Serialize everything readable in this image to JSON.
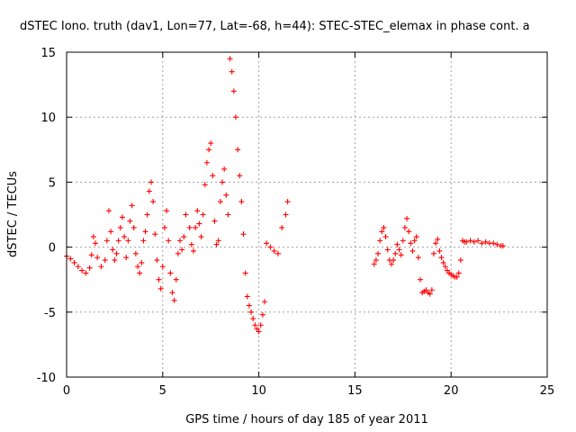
{
  "chart_data": {
    "type": "scatter",
    "title": "dSTEC Iono. truth (dav1, Lon=77, Lat=-68, h=44): STEC-STEC_elemax in phase cont. a",
    "xlabel": "GPS time / hours of day 185 of year 2011",
    "ylabel": "dSTEC  / TECUs",
    "xlim": [
      0,
      25
    ],
    "ylim": [
      -10,
      15
    ],
    "x_ticks": [
      0,
      5,
      10,
      15,
      20,
      25
    ],
    "y_ticks": [
      -10,
      -5,
      0,
      5,
      10,
      15
    ],
    "grid": true,
    "marker": "+",
    "marker_color": "#ff0000",
    "series": [
      {
        "points": [
          [
            0.0,
            -0.7
          ],
          [
            0.2,
            -0.9
          ],
          [
            0.4,
            -1.2
          ],
          [
            0.6,
            -1.5
          ],
          [
            0.8,
            -1.8
          ],
          [
            1.0,
            -2.0
          ],
          [
            1.2,
            -1.6
          ],
          [
            1.3,
            -0.6
          ],
          [
            1.4,
            0.8
          ],
          [
            1.5,
            0.3
          ],
          [
            1.6,
            -0.8
          ],
          [
            1.8,
            -1.5
          ],
          [
            2.0,
            -1.0
          ],
          [
            2.1,
            0.5
          ],
          [
            2.2,
            2.8
          ],
          [
            2.3,
            1.2
          ],
          [
            2.4,
            -0.2
          ],
          [
            2.5,
            -1.0
          ],
          [
            2.6,
            -0.5
          ],
          [
            2.7,
            0.5
          ],
          [
            2.8,
            1.5
          ],
          [
            2.9,
            2.3
          ],
          [
            3.0,
            0.8
          ],
          [
            3.1,
            -0.8
          ],
          [
            3.2,
            0.5
          ],
          [
            3.3,
            2.0
          ],
          [
            3.4,
            3.2
          ],
          [
            3.5,
            1.5
          ],
          [
            3.6,
            -0.5
          ],
          [
            3.7,
            -1.5
          ],
          [
            3.8,
            -2.0
          ],
          [
            3.9,
            -1.2
          ],
          [
            4.0,
            0.5
          ],
          [
            4.1,
            1.2
          ],
          [
            4.2,
            2.5
          ],
          [
            4.3,
            4.3
          ],
          [
            4.4,
            5.0
          ],
          [
            4.5,
            3.5
          ],
          [
            4.6,
            1.0
          ],
          [
            4.7,
            -1.0
          ],
          [
            4.8,
            -2.5
          ],
          [
            4.9,
            -3.2
          ],
          [
            5.0,
            -1.5
          ],
          [
            5.1,
            1.5
          ],
          [
            5.2,
            2.8
          ],
          [
            5.3,
            0.5
          ],
          [
            5.4,
            -2.0
          ],
          [
            5.5,
            -3.5
          ],
          [
            5.6,
            -4.1
          ],
          [
            5.7,
            -2.5
          ],
          [
            5.8,
            -0.5
          ],
          [
            5.9,
            0.5
          ],
          [
            6.0,
            -0.2
          ],
          [
            6.1,
            0.8
          ],
          [
            6.2,
            2.5
          ],
          [
            6.4,
            1.5
          ],
          [
            6.5,
            0.2
          ],
          [
            6.6,
            -0.3
          ],
          [
            6.7,
            1.5
          ],
          [
            6.8,
            2.8
          ],
          [
            6.9,
            1.8
          ],
          [
            7.0,
            0.8
          ],
          [
            7.1,
            2.5
          ],
          [
            7.2,
            4.8
          ],
          [
            7.3,
            6.5
          ],
          [
            7.4,
            7.5
          ],
          [
            7.5,
            8.0
          ],
          [
            7.6,
            5.5
          ],
          [
            7.7,
            2.0
          ],
          [
            7.8,
            0.2
          ],
          [
            7.9,
            0.5
          ],
          [
            8.0,
            3.5
          ],
          [
            8.1,
            5.0
          ],
          [
            8.2,
            6.0
          ],
          [
            8.3,
            4.0
          ],
          [
            8.4,
            2.5
          ],
          [
            8.5,
            14.5
          ],
          [
            8.6,
            13.5
          ],
          [
            8.7,
            12.0
          ],
          [
            8.8,
            10.0
          ],
          [
            8.9,
            7.5
          ],
          [
            9.0,
            5.5
          ],
          [
            9.1,
            3.5
          ],
          [
            9.2,
            1.0
          ],
          [
            9.3,
            -2.0
          ],
          [
            9.4,
            -3.8
          ],
          [
            9.5,
            -4.5
          ],
          [
            9.6,
            -5.0
          ],
          [
            9.7,
            -5.5
          ],
          [
            9.8,
            -6.0
          ],
          [
            9.9,
            -6.3
          ],
          [
            10.0,
            -6.5
          ],
          [
            10.1,
            -6.0
          ],
          [
            10.2,
            -5.2
          ],
          [
            10.3,
            -4.2
          ],
          [
            10.4,
            0.3
          ],
          [
            10.6,
            0.0
          ],
          [
            10.8,
            -0.3
          ],
          [
            11.0,
            -0.5
          ],
          [
            11.2,
            1.5
          ],
          [
            11.4,
            2.5
          ],
          [
            11.5,
            3.5
          ],
          [
            16.0,
            -1.3
          ],
          [
            16.1,
            -1.0
          ],
          [
            16.2,
            -0.5
          ],
          [
            16.3,
            0.5
          ],
          [
            16.4,
            1.2
          ],
          [
            16.5,
            1.5
          ],
          [
            16.6,
            0.8
          ],
          [
            16.7,
            -0.2
          ],
          [
            16.8,
            -1.0
          ],
          [
            16.9,
            -1.3
          ],
          [
            17.0,
            -1.0
          ],
          [
            17.1,
            -0.5
          ],
          [
            17.2,
            0.2
          ],
          [
            17.3,
            -0.2
          ],
          [
            17.4,
            -0.6
          ],
          [
            17.5,
            0.5
          ],
          [
            17.6,
            1.5
          ],
          [
            17.7,
            2.2
          ],
          [
            17.8,
            1.2
          ],
          [
            17.9,
            0.3
          ],
          [
            18.0,
            -0.3
          ],
          [
            18.1,
            0.5
          ],
          [
            18.2,
            0.8
          ],
          [
            18.3,
            -0.8
          ],
          [
            18.4,
            -2.5
          ],
          [
            18.5,
            -3.5
          ],
          [
            18.6,
            -3.4
          ],
          [
            18.7,
            -3.3
          ],
          [
            18.8,
            -3.5
          ],
          [
            18.9,
            -3.6
          ],
          [
            19.0,
            -3.3
          ],
          [
            19.1,
            -0.5
          ],
          [
            19.2,
            0.3
          ],
          [
            19.3,
            0.6
          ],
          [
            19.4,
            -0.3
          ],
          [
            19.5,
            -0.8
          ],
          [
            19.6,
            -1.2
          ],
          [
            19.7,
            -1.5
          ],
          [
            19.8,
            -1.8
          ],
          [
            19.9,
            -2.0
          ],
          [
            20.0,
            -2.1
          ],
          [
            20.1,
            -2.2
          ],
          [
            20.2,
            -2.3
          ],
          [
            20.3,
            -2.3
          ],
          [
            20.4,
            -2.0
          ],
          [
            20.5,
            -1.0
          ],
          [
            20.6,
            0.5
          ],
          [
            20.7,
            0.4
          ],
          [
            20.8,
            0.4
          ],
          [
            21.0,
            0.5
          ],
          [
            21.2,
            0.4
          ],
          [
            21.4,
            0.5
          ],
          [
            21.6,
            0.3
          ],
          [
            21.8,
            0.4
          ],
          [
            22.0,
            0.3
          ],
          [
            22.2,
            0.3
          ],
          [
            22.4,
            0.2
          ],
          [
            22.6,
            0.1
          ],
          [
            22.7,
            0.1
          ]
        ]
      }
    ]
  }
}
